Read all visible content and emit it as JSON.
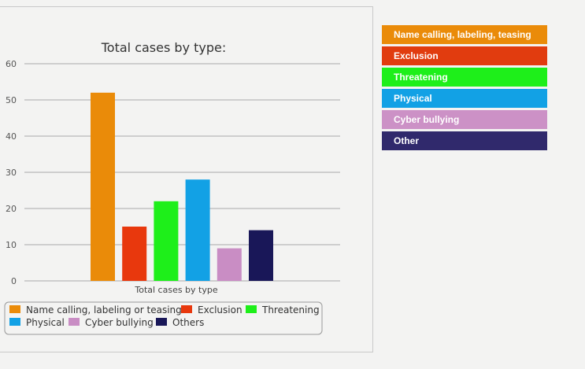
{
  "chart_data": {
    "type": "bar",
    "title": "Total cases by type:",
    "categories": [
      "Total cases by type"
    ],
    "series": [
      {
        "name": "Name calling, labeling or teasing",
        "values": [
          52
        ],
        "color": "#ea8b09"
      },
      {
        "name": "Exclusion",
        "values": [
          15
        ],
        "color": "#e8380d"
      },
      {
        "name": "Threatening",
        "values": [
          22
        ],
        "color": "#1eef1a"
      },
      {
        "name": "Physical",
        "values": [
          28
        ],
        "color": "#12a1e5"
      },
      {
        "name": "Cyber bullying",
        "values": [
          9
        ],
        "color": "#c98dc4"
      },
      {
        "name": "Others",
        "values": [
          14
        ],
        "color": "#191758"
      }
    ],
    "ylim": [
      0,
      60
    ],
    "yticks": [
      0,
      10,
      20,
      30,
      40,
      50,
      60
    ],
    "grid": true,
    "legend": "bottom"
  },
  "side_legend": [
    {
      "label": "Name calling, labeling, teasing",
      "color": "#ea8b09"
    },
    {
      "label": "Exclusion",
      "color": "#e13c0f"
    },
    {
      "label": "Threatening",
      "color": "#1eef1a"
    },
    {
      "label": "Physical",
      "color": "#12a1e5"
    },
    {
      "label": "Cyber bullying",
      "color": "#cc91c6"
    },
    {
      "label": "Other",
      "color": "#30296c"
    }
  ]
}
